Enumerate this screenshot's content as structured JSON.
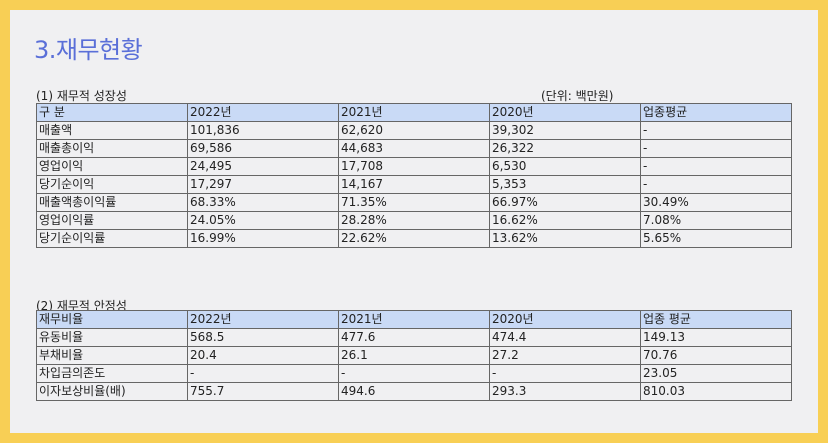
{
  "title": "3.재무현황",
  "growth": {
    "caption": "(1) 재무적 성장성",
    "unit": "(단위: 백만원)",
    "header": [
      "구  분",
      "2022년",
      "2021년",
      "2020년",
      "업종평균"
    ],
    "rows": [
      [
        "매출액",
        "101,836",
        "62,620",
        "39,302",
        "-"
      ],
      [
        "매출총이익",
        "69,586",
        "44,683",
        "26,322",
        "-"
      ],
      [
        "영업이익",
        "24,495",
        "17,708",
        "6,530",
        "-"
      ],
      [
        "당기순이익",
        "17,297",
        "14,167",
        "5,353",
        "-"
      ],
      [
        "매출액총이익률",
        "68.33%",
        "71.35%",
        "66.97%",
        "30.49%"
      ],
      [
        "영업이익률",
        "24.05%",
        "28.28%",
        "16.62%",
        "7.08%"
      ],
      [
        "당기순이익률",
        "16.99%",
        "22.62%",
        "13.62%",
        "5.65%"
      ]
    ]
  },
  "stability": {
    "caption": "(2) 재무적 안정성",
    "header": [
      "재무비율",
      "2022년",
      "2021년",
      "2020년",
      "업종 평균"
    ],
    "rows": [
      [
        "유동비율",
        "568.5",
        "477.6",
        "474.4",
        "149.13"
      ],
      [
        "부채비율",
        "20.4",
        "26.1",
        "27.2",
        "70.76"
      ],
      [
        "차입금의존도",
        "-",
        "-",
        "-",
        "23.05"
      ],
      [
        "이자보상비율(배)",
        "755.7",
        "494.6",
        "293.3",
        "810.03"
      ]
    ]
  }
}
